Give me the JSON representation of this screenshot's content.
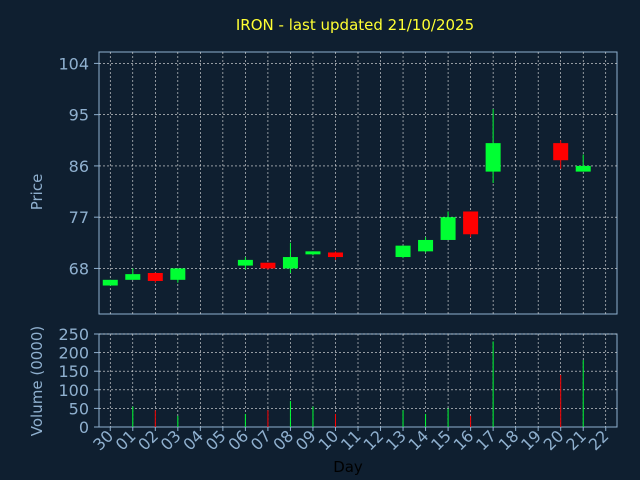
{
  "chart_data": [
    {
      "type": "candlestick",
      "title": "IRON - last updated 21/10/2025",
      "ylabel": "Price",
      "ylim": [
        60,
        106
      ],
      "yticks": [
        68,
        77,
        86,
        95,
        104
      ],
      "grid": true,
      "up_color": "#00ff33",
      "down_color": "#ff0000",
      "candles": [
        {
          "day": "30",
          "open": 65,
          "high": 66,
          "low": 65,
          "close": 66
        },
        {
          "day": "01",
          "open": 66,
          "high": 68,
          "low": 66,
          "close": 67
        },
        {
          "day": "02",
          "open": 67.2,
          "high": 67.3,
          "low": 65.5,
          "close": 65.8
        },
        {
          "day": "03",
          "open": 66,
          "high": 68,
          "low": 65.5,
          "close": 68
        },
        {
          "day": "06",
          "open": 68.5,
          "high": 70,
          "low": 67.8,
          "close": 69.5
        },
        {
          "day": "07",
          "open": 69,
          "high": 69,
          "low": 67.8,
          "close": 68
        },
        {
          "day": "08",
          "open": 68,
          "high": 72.5,
          "low": 67.2,
          "close": 70
        },
        {
          "day": "09",
          "open": 70.5,
          "high": 71,
          "low": 70.3,
          "close": 71
        },
        {
          "day": "10",
          "open": 70.8,
          "high": 71,
          "low": 69.5,
          "close": 70
        },
        {
          "day": "13",
          "open": 70,
          "high": 72,
          "low": 69.8,
          "close": 72
        },
        {
          "day": "14",
          "open": 71,
          "high": 73.5,
          "low": 70.8,
          "close": 73
        },
        {
          "day": "15",
          "open": 73,
          "high": 78,
          "low": 73,
          "close": 77
        },
        {
          "day": "16",
          "open": 78,
          "high": 78,
          "low": 73.5,
          "close": 74
        },
        {
          "day": "17",
          "open": 85,
          "high": 96,
          "low": 83,
          "close": 90
        },
        {
          "day": "20",
          "open": 90,
          "high": 90.5,
          "low": 85.5,
          "close": 87
        },
        {
          "day": "21",
          "open": 85,
          "high": 88,
          "low": 85,
          "close": 86
        }
      ]
    },
    {
      "type": "bar",
      "xlabel": "Day",
      "ylabel": "Volume (0000)",
      "ylim": [
        0,
        250
      ],
      "yticks": [
        0,
        50,
        100,
        150,
        200,
        250
      ],
      "categories": [
        "30",
        "01",
        "02",
        "03",
        "04",
        "05",
        "06",
        "07",
        "08",
        "09",
        "10",
        "11",
        "12",
        "13",
        "14",
        "15",
        "16",
        "17",
        "18",
        "19",
        "20",
        "21",
        "22"
      ],
      "bars": [
        {
          "day": "01",
          "value": 55,
          "color": "#00ff33"
        },
        {
          "day": "02",
          "value": 45,
          "color": "#ff0000"
        },
        {
          "day": "03",
          "value": 30,
          "color": "#00ff33"
        },
        {
          "day": "06",
          "value": 35,
          "color": "#00ff33"
        },
        {
          "day": "07",
          "value": 45,
          "color": "#ff0000"
        },
        {
          "day": "08",
          "value": 70,
          "color": "#00ff33"
        },
        {
          "day": "09",
          "value": 55,
          "color": "#00ff33"
        },
        {
          "day": "10",
          "value": 35,
          "color": "#ff0000"
        },
        {
          "day": "13",
          "value": 45,
          "color": "#00ff33"
        },
        {
          "day": "14",
          "value": 35,
          "color": "#00ff33"
        },
        {
          "day": "15",
          "value": 50,
          "color": "#00ff33"
        },
        {
          "day": "16",
          "value": 30,
          "color": "#ff0000"
        },
        {
          "day": "17",
          "value": 230,
          "color": "#00ff33"
        },
        {
          "day": "20",
          "value": 140,
          "color": "#ff0000"
        },
        {
          "day": "21",
          "value": 180,
          "color": "#00ff33"
        }
      ]
    }
  ]
}
